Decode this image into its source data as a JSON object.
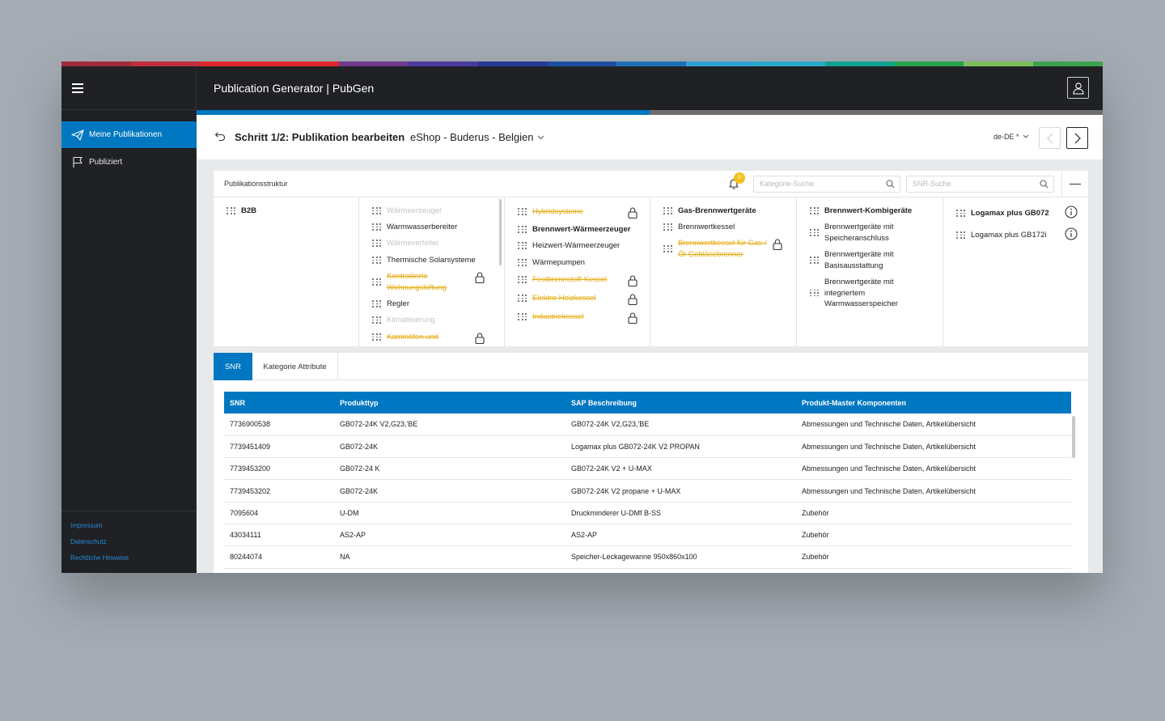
{
  "colors": {
    "accent": "#0077c1",
    "sidebar_bg": "#1f2124",
    "warning": "#e5ac12",
    "rainbow": [
      "#a02b3c",
      "#c02e3e",
      "#e2262c",
      "#e2262c",
      "#6f3990",
      "#4a3a9b",
      "#263c94",
      "#1d4f9e",
      "#1f6fb7",
      "#2ea2d6",
      "#2aa9c9",
      "#11a28e",
      "#27a34a",
      "#7bbf5b",
      "#3da24e"
    ]
  },
  "sidebar": {
    "menu_icon": "hamburger-icon",
    "items": [
      {
        "label": "Meine Publikationen",
        "icon": "paper-plane-icon",
        "active": true
      },
      {
        "label": "Publiziert",
        "icon": "flag-icon",
        "active": false
      }
    ],
    "footer_links": [
      "Impressum",
      "Datenschutz",
      "Rechtliche Hinweise"
    ]
  },
  "topbar": {
    "title": "Publication Generator | PubGen",
    "user_icon": "user-icon"
  },
  "progress": {
    "step": 1,
    "of": 2,
    "fraction": 0.5
  },
  "header": {
    "step_title": "Schritt 1/2: Publikation bearbeiten",
    "publication": "eShop - Buderus - Belgien",
    "language": "de-DE *"
  },
  "structure": {
    "label": "Publikationsstruktur",
    "notification_count": "0",
    "category_search_placeholder": "Kategorie-Suche",
    "snr_search_placeholder": "SNR-Suche",
    "col1": [
      {
        "label": "B2B",
        "state": "bold"
      }
    ],
    "col2": [
      {
        "label": "Wärmeerzeuger",
        "state": "disabled"
      },
      {
        "label": "Warmwasserbereiter",
        "state": "normal"
      },
      {
        "label": "Wärmeverteiler",
        "state": "disabled"
      },
      {
        "label": "Thermische Solarsysteme",
        "state": "normal"
      },
      {
        "label": "Kontrollierte Wohnungslüftung",
        "state": "locked"
      },
      {
        "label": "Regler",
        "state": "normal"
      },
      {
        "label": "Klimatisierung",
        "state": "disabled"
      },
      {
        "label": "Kaminöfen und",
        "state": "locked"
      }
    ],
    "col3": [
      {
        "label": "Hybridsysteme",
        "state": "locked"
      },
      {
        "label": "Brennwert-Wärmeerzeuger",
        "state": "bold"
      },
      {
        "label": "Heizwert-Wärmeerzeuger",
        "state": "normal"
      },
      {
        "label": "Wärmepumpen",
        "state": "normal"
      },
      {
        "label": "Festbrennstoff-Kessel",
        "state": "locked"
      },
      {
        "label": "Elektro-Heizkessel",
        "state": "locked"
      },
      {
        "label": "Industriekessel",
        "state": "locked"
      }
    ],
    "col4": [
      {
        "label": "Gas-Brennwertgeräte",
        "state": "bold"
      },
      {
        "label": "Brennwertkessel",
        "state": "normal"
      },
      {
        "label": "Brennwertkessel für Gas-/Öl-Gebläsebrenner",
        "state": "locked"
      }
    ],
    "col5": [
      {
        "label": "Brennwert-Kombigeräte",
        "state": "bold"
      },
      {
        "label": "Brennwertgeräte mit Speicheranschluss",
        "state": "normal"
      },
      {
        "label": "Brennwertgeräte mit Basisausstattung",
        "state": "normal"
      },
      {
        "label": "Brennwertgeräte mit integriertem Warmwasserspeicher",
        "state": "normal"
      }
    ],
    "col6": [
      {
        "label": "Logamax plus GB072",
        "state": "bold",
        "icon": "info-icon"
      },
      {
        "label": "Logamax plus GB172i",
        "state": "normal",
        "icon": "info-icon"
      }
    ]
  },
  "tabs": [
    {
      "label": "SNR",
      "active": true
    },
    {
      "label": "Kategorie Attribute",
      "active": false
    }
  ],
  "table": {
    "columns": [
      "SNR",
      "Produkttyp",
      "SAP Beschreibung",
      "Produkt-Master Komponenten"
    ],
    "rows": [
      [
        "7736900538",
        "GB072-24K V2,G23,'BE",
        "GB072-24K V2,G23,'BE",
        "Abmessungen und Technische Daten, Artikelübersicht"
      ],
      [
        "7739451409",
        "GB072-24K",
        "Logamax plus GB072-24K V2 PROPAN",
        "Abmessungen und Technische Daten, Artikelübersicht"
      ],
      [
        "7739453200",
        "GB072-24 K",
        "GB072-24K V2 + U-MAX",
        "Abmessungen und Technische Daten, Artikelübersicht"
      ],
      [
        "7739453202",
        "GB072-24K",
        "GB072-24K V2 propane + U-MAX",
        "Abmessungen und Technische Daten, Artikelübersicht"
      ],
      [
        "7095604",
        "U-DM",
        "Druckminderer U-DMf B-SS",
        "Zubehör"
      ],
      [
        "43034111",
        "AS2-AP",
        "AS2-AP",
        "Zubehör"
      ],
      [
        "80244074",
        "NA",
        "Speicher-Leckagewanne 950x860x100",
        "Zubehör"
      ]
    ]
  }
}
